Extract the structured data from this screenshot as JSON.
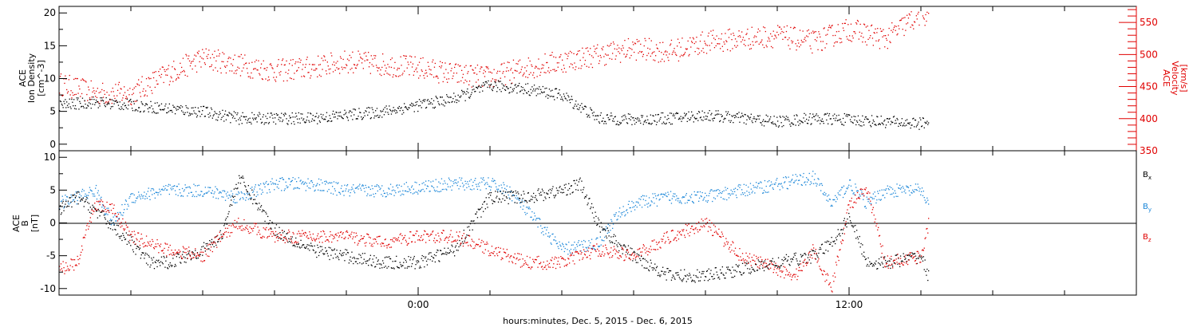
{
  "colors": {
    "black": "#000000",
    "red": "#e00000",
    "blue": "#1a86d8"
  },
  "xaxis": {
    "label": "hours:minutes, Dec.  5, 2015 - Dec.  6, 2015",
    "range_hours": [
      -10,
      20
    ],
    "tick_labels": [
      {
        "hour": 0,
        "text": "0:00"
      },
      {
        "hour": 12,
        "text": "12:00"
      }
    ],
    "minor_tick_step_hours": 2
  },
  "chart_data": [
    {
      "type": "scatter",
      "panel": "top",
      "left_axis": {
        "label_lines": [
          "ACE",
          "Ion Density",
          "[cm^-3]"
        ],
        "ylim": [
          -1,
          21
        ],
        "ticks": [
          0,
          5,
          10,
          15,
          20
        ]
      },
      "right_axis": {
        "label_lines": [
          "ACE",
          "Velocity",
          "[km/s]"
        ],
        "ylim": [
          350,
          575
        ],
        "ticks": [
          350,
          400,
          450,
          500,
          550
        ]
      },
      "series": [
        {
          "color": "#000000",
          "axis": "left",
          "x": [
            -10,
            -9,
            -8,
            -7,
            -6,
            -5,
            -4,
            -3,
            -2,
            -1,
            0,
            1,
            1.5,
            2,
            3,
            4,
            5,
            6,
            7,
            8,
            9,
            10,
            11,
            12,
            13,
            14,
            14.2
          ],
          "y": [
            6,
            6.5,
            6,
            5.5,
            5,
            4,
            4,
            4,
            4.5,
            5,
            6,
            7,
            8,
            9,
            8.5,
            7.5,
            4,
            3.8,
            4,
            4.5,
            4,
            3.5,
            4,
            3.8,
            3.5,
            3.2,
            3.5
          ]
        },
        {
          "color": "#e00000",
          "axis": "right",
          "x": [
            -10,
            -9,
            -8,
            -7,
            -6,
            -5,
            -4,
            -3,
            -2,
            -1,
            0,
            1,
            2,
            3,
            4,
            5,
            6,
            7,
            8,
            9,
            10,
            11,
            12,
            13,
            14,
            14.2
          ],
          "y": [
            455,
            440,
            440,
            470,
            495,
            485,
            475,
            480,
            490,
            485,
            480,
            470,
            465,
            480,
            490,
            500,
            510,
            505,
            520,
            525,
            530,
            520,
            540,
            525,
            565,
            560
          ]
        }
      ]
    },
    {
      "type": "scatter",
      "panel": "bottom",
      "left_axis": {
        "label_lines": [
          "ACE",
          "B",
          "[nT]"
        ],
        "ylim": [
          -11,
          11
        ],
        "ticks": [
          -10,
          -5,
          0,
          5,
          10
        ]
      },
      "zero_line": true,
      "legend": [
        {
          "name": "B",
          "subscript": "x",
          "color": "#000000"
        },
        {
          "name": "B",
          "subscript": "y",
          "color": "#1a86d8"
        },
        {
          "name": "B",
          "subscript": "z",
          "color": "#e00000"
        }
      ],
      "series": [
        {
          "name": "Bx",
          "color": "#000000",
          "x": [
            -10,
            -9.5,
            -9,
            -8,
            -7.5,
            -7,
            -6,
            -5.5,
            -5,
            -4.5,
            -4,
            -3,
            -2,
            -1,
            0,
            1,
            2,
            3,
            4,
            4.5,
            5,
            5.5,
            6,
            7,
            7.5,
            8,
            9,
            10,
            11,
            11.5,
            12,
            12.5,
            13,
            14,
            14.2
          ],
          "y": [
            2,
            4,
            2,
            -3,
            -6,
            -6,
            -4,
            -2,
            7,
            3,
            -1,
            -4,
            -5,
            -6,
            -6,
            -4,
            4,
            4,
            5,
            6,
            0,
            -3,
            -5,
            -8,
            -8,
            -8,
            -7,
            -6,
            -5,
            -3,
            1,
            -6,
            -6,
            -5,
            -8
          ]
        },
        {
          "name": "By",
          "color": "#1a86d8",
          "x": [
            -10,
            -9.5,
            -9,
            -8.5,
            -8,
            -7,
            -6,
            -5,
            -4,
            -3,
            -2,
            -1,
            0,
            1,
            2,
            2.5,
            3,
            4,
            5,
            5.5,
            6,
            7,
            8,
            9,
            10,
            11,
            11.5,
            12,
            12.5,
            13,
            14,
            14.2
          ],
          "y": [
            3,
            4,
            5,
            0,
            4,
            5,
            5,
            4,
            6,
            6,
            5,
            5,
            5.5,
            6,
            6,
            5,
            2,
            -4,
            -3,
            1,
            3,
            4,
            4,
            5,
            6,
            7,
            3,
            6,
            3,
            5,
            5,
            3
          ]
        },
        {
          "name": "Bz",
          "color": "#e00000",
          "x": [
            -10,
            -9.5,
            -9,
            -8.5,
            -8,
            -7,
            -6,
            -5.5,
            -5,
            -4,
            -3,
            -2,
            -1,
            0,
            1,
            2,
            3,
            4,
            5,
            6,
            7,
            8,
            9,
            10,
            10.5,
            11,
            11.5,
            12,
            12.5,
            13,
            14,
            14.2
          ],
          "y": [
            -7,
            -6,
            3,
            2,
            -2,
            -4,
            -5,
            -2,
            0,
            -2,
            -2,
            -2,
            -3,
            -2,
            -2,
            -4,
            -6,
            -6,
            -4,
            -5,
            -2,
            0,
            -5,
            -7,
            -8,
            -4,
            -10,
            3,
            5,
            -6,
            -5,
            0
          ]
        }
      ]
    }
  ]
}
